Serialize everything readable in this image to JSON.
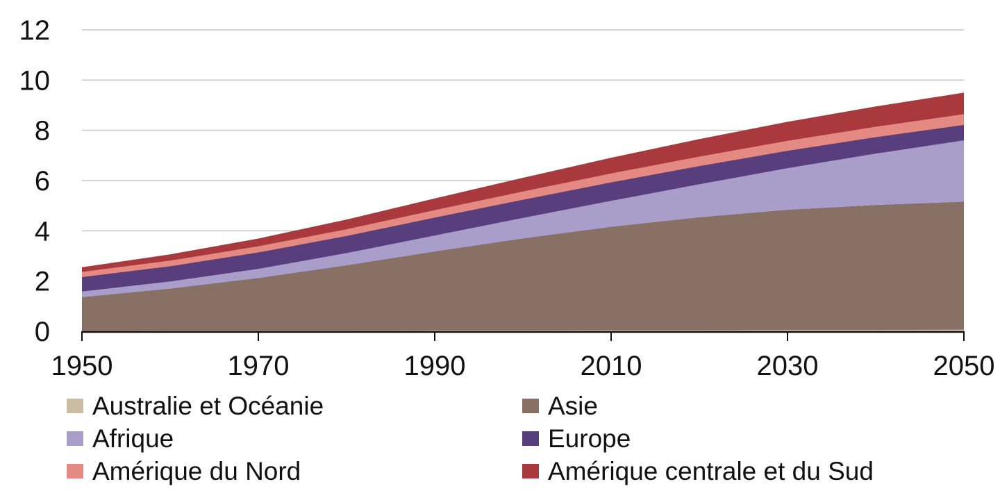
{
  "chart_data": {
    "type": "area",
    "stacked": true,
    "title": "",
    "xlabel": "",
    "ylabel": "",
    "background": "#ffffff",
    "grid": "horizontal",
    "grid_color": "#c9c9c9",
    "axis_color": "#111111",
    "ylim": [
      0,
      12
    ],
    "y_ticks": [
      0,
      2,
      4,
      6,
      8,
      10,
      12
    ],
    "y_tick_labels": [
      "0",
      "2",
      "4",
      "6",
      "8",
      "10",
      "12"
    ],
    "x_ticks": [
      1950,
      1970,
      1990,
      2010,
      2030,
      2050
    ],
    "x_tick_labels": [
      "1950",
      "1970",
      "1990",
      "2010",
      "2030",
      "2050"
    ],
    "x": [
      1950,
      1960,
      1970,
      1980,
      1990,
      2000,
      2010,
      2020,
      2030,
      2040,
      2050
    ],
    "series": [
      {
        "id": "australie-oceanie",
        "name": "Australie et Océanie",
        "color": "#cbbda4",
        "values": [
          0.01,
          0.02,
          0.02,
          0.02,
          0.03,
          0.03,
          0.04,
          0.04,
          0.05,
          0.05,
          0.06
        ]
      },
      {
        "id": "asie",
        "name": "Asie",
        "color": "#887164",
        "values": [
          1.35,
          1.68,
          2.1,
          2.61,
          3.15,
          3.67,
          4.12,
          4.5,
          4.79,
          4.98,
          5.1
        ]
      },
      {
        "id": "afrique",
        "name": "Afrique",
        "color": "#a99ec9",
        "values": [
          0.22,
          0.28,
          0.36,
          0.48,
          0.63,
          0.81,
          1.03,
          1.31,
          1.65,
          2.04,
          2.44
        ]
      },
      {
        "id": "europe",
        "name": "Europe",
        "color": "#593e7e",
        "values": [
          0.58,
          0.61,
          0.66,
          0.69,
          0.72,
          0.73,
          0.74,
          0.73,
          0.7,
          0.66,
          0.62
        ]
      },
      {
        "id": "amerique-du-nord",
        "name": "Amérique du Nord",
        "color": "#e58a82",
        "values": [
          0.2,
          0.22,
          0.24,
          0.26,
          0.29,
          0.32,
          0.35,
          0.37,
          0.39,
          0.41,
          0.42
        ]
      },
      {
        "id": "amerique-centrale-et-du-sud",
        "name": "Amérique centrale et du Sud",
        "color": "#aa393e",
        "values": [
          0.19,
          0.25,
          0.31,
          0.39,
          0.47,
          0.55,
          0.63,
          0.7,
          0.76,
          0.81,
          0.86
        ]
      }
    ],
    "legend_position": "bottom",
    "legend_columns": 2,
    "legend_order": [
      "australie-oceanie",
      "asie",
      "afrique",
      "europe",
      "amerique-du-nord",
      "amerique-centrale-et-du-sud"
    ]
  }
}
